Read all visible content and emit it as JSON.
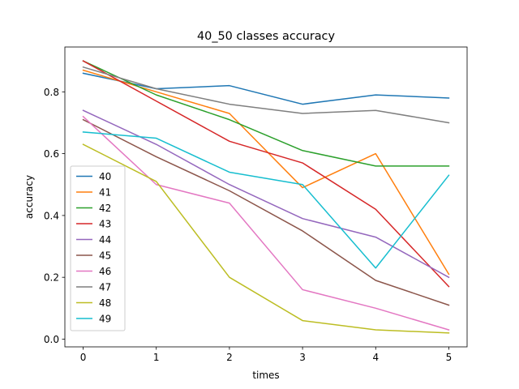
{
  "chart_data": {
    "type": "line",
    "title": "40_50 classes accuracy",
    "xlabel": "times",
    "ylabel": "accuracy",
    "x": [
      0,
      1,
      2,
      3,
      4,
      5
    ],
    "xlim": [
      -0.25,
      5.25
    ],
    "ylim": [
      -0.025,
      0.945
    ],
    "xticks": [
      0,
      1,
      2,
      3,
      4,
      5
    ],
    "yticks": [
      0.0,
      0.2,
      0.4,
      0.6,
      0.8
    ],
    "ytick_labels": [
      "0.0",
      "0.2",
      "0.4",
      "0.6",
      "0.8"
    ],
    "grid": false,
    "legend_position": "center-left",
    "series": [
      {
        "name": "40",
        "color": "#1f77b4",
        "values": [
          0.86,
          0.81,
          0.82,
          0.76,
          0.79,
          0.78
        ]
      },
      {
        "name": "41",
        "color": "#ff7f0e",
        "values": [
          0.87,
          0.8,
          0.73,
          0.49,
          0.6,
          0.21
        ]
      },
      {
        "name": "42",
        "color": "#2ca02c",
        "values": [
          0.9,
          0.79,
          0.71,
          0.61,
          0.56,
          0.56
        ]
      },
      {
        "name": "43",
        "color": "#d62728",
        "values": [
          0.9,
          0.77,
          0.64,
          0.57,
          0.42,
          0.17
        ]
      },
      {
        "name": "44",
        "color": "#9467bd",
        "values": [
          0.74,
          0.63,
          0.5,
          0.39,
          0.33,
          0.2
        ]
      },
      {
        "name": "45",
        "color": "#8c564b",
        "values": [
          0.71,
          0.59,
          0.48,
          0.35,
          0.19,
          0.11
        ]
      },
      {
        "name": "46",
        "color": "#e377c2",
        "values": [
          0.72,
          0.5,
          0.44,
          0.16,
          0.1,
          0.03
        ]
      },
      {
        "name": "47",
        "color": "#7f7f7f",
        "values": [
          0.88,
          0.81,
          0.76,
          0.73,
          0.74,
          0.7
        ]
      },
      {
        "name": "48",
        "color": "#bcbd22",
        "values": [
          0.63,
          0.51,
          0.2,
          0.06,
          0.03,
          0.02
        ]
      },
      {
        "name": "49",
        "color": "#17becf",
        "values": [
          0.67,
          0.65,
          0.54,
          0.5,
          0.23,
          0.53
        ]
      }
    ]
  }
}
